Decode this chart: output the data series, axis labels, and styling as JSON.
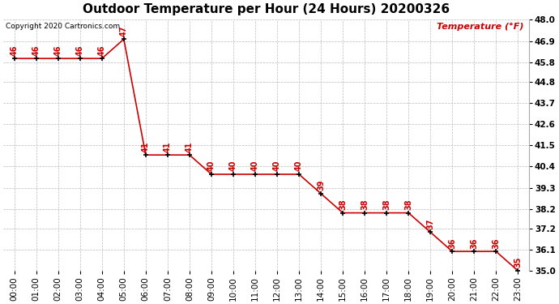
{
  "title": "Outdoor Temperature per Hour (24 Hours) 20200326",
  "copyright_text": "Copyright 2020 Cartronics.com",
  "legend_label": "Temperature (°F)",
  "hours": [
    "00:00",
    "01:00",
    "02:00",
    "03:00",
    "04:00",
    "05:00",
    "06:00",
    "07:00",
    "08:00",
    "09:00",
    "10:00",
    "11:00",
    "12:00",
    "13:00",
    "14:00",
    "15:00",
    "16:00",
    "17:00",
    "18:00",
    "19:00",
    "20:00",
    "21:00",
    "22:00",
    "23:00"
  ],
  "temps": [
    46,
    46,
    46,
    46,
    46,
    47,
    41,
    41,
    41,
    40,
    40,
    40,
    40,
    40,
    39,
    38,
    38,
    38,
    38,
    37,
    36,
    36,
    36,
    35
  ],
  "ymin": 35.0,
  "ymax": 48.0,
  "yticks": [
    35.0,
    36.1,
    37.2,
    38.2,
    39.3,
    40.4,
    41.5,
    42.6,
    43.7,
    44.8,
    45.8,
    46.9,
    48.0
  ],
  "ytick_labels": [
    "35.0",
    "36.1",
    "37.2",
    "38.2",
    "39.3",
    "40.4",
    "41.5",
    "42.6",
    "43.7",
    "44.8",
    "45.8",
    "46.9",
    "48.0"
  ],
  "line_color": "#cc0000",
  "marker_color": "#000000",
  "label_color": "#cc0000",
  "title_color": "#000000",
  "copyright_color": "#000000",
  "legend_color": "#cc0000",
  "background_color": "#ffffff",
  "grid_color": "#bbbbbb",
  "title_fontsize": 11,
  "label_fontsize": 7,
  "copyright_fontsize": 6.5,
  "legend_fontsize": 8,
  "tick_fontsize": 7.5
}
